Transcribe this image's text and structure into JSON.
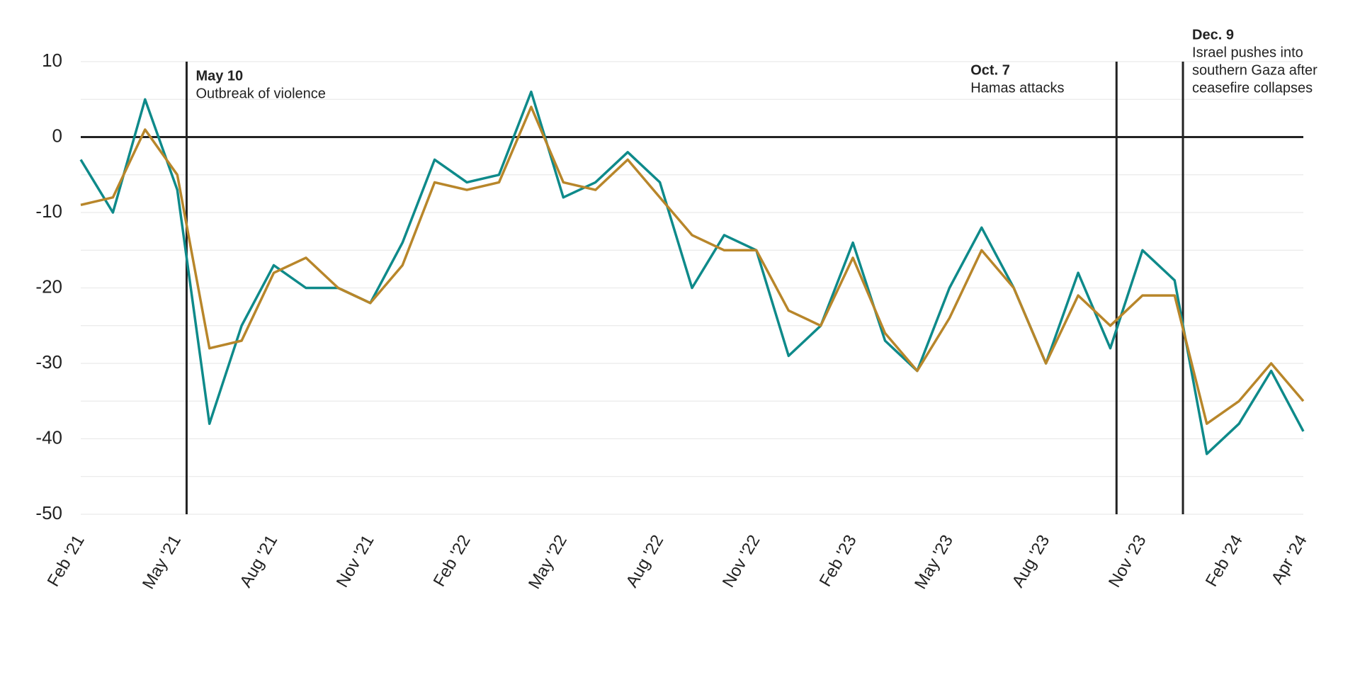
{
  "chart_data": {
    "type": "line",
    "x": [
      "2021-02",
      "2021-03",
      "2021-04",
      "2021-05",
      "2021-06",
      "2021-07",
      "2021-08",
      "2021-09",
      "2021-10",
      "2021-11",
      "2021-12",
      "2022-01",
      "2022-02",
      "2022-03",
      "2022-04",
      "2022-05",
      "2022-06",
      "2022-07",
      "2022-08",
      "2022-09",
      "2022-10",
      "2022-11",
      "2022-12",
      "2023-01",
      "2023-02",
      "2023-03",
      "2023-04",
      "2023-05",
      "2023-06",
      "2023-07",
      "2023-08",
      "2023-09",
      "2023-10",
      "2023-11",
      "2023-12",
      "2024-01",
      "2024-02",
      "2024-03",
      "2024-04"
    ],
    "series": [
      {
        "color": "#0e8a8a",
        "values": [
          -3,
          -10,
          5,
          -7,
          -38,
          -25,
          -17,
          -20,
          -20,
          -22,
          -14,
          -3,
          -6,
          -5,
          6,
          -8,
          -6,
          -2,
          -6,
          -20,
          -13,
          -15,
          -29,
          -25,
          -14,
          -27,
          -31,
          -20,
          -12,
          -20,
          -30,
          -18,
          -28,
          -15,
          -19,
          -42,
          -38,
          -31,
          -39
        ]
      },
      {
        "color": "#b8862a",
        "values": [
          -9,
          -8,
          1,
          -5,
          -28,
          -27,
          -18,
          -16,
          -20,
          -22,
          -17,
          -6,
          -7,
          -6,
          4,
          -6,
          -7,
          -3,
          -8,
          -13,
          -15,
          -15,
          -23,
          -25,
          -16,
          -26,
          -31,
          -24,
          -15,
          -20,
          -30,
          -21,
          -25,
          -21,
          -21,
          -38,
          -35,
          -30,
          -35
        ]
      }
    ],
    "xlim": [
      "2021-02",
      "2024-04"
    ],
    "xticks": [
      {
        "value": "2021-02",
        "label": "Feb '21"
      },
      {
        "value": "2021-05",
        "label": "May '21"
      },
      {
        "value": "2021-08",
        "label": "Aug '21"
      },
      {
        "value": "2021-11",
        "label": "Nov '21"
      },
      {
        "value": "2022-02",
        "label": "Feb '22"
      },
      {
        "value": "2022-05",
        "label": "May '22"
      },
      {
        "value": "2022-08",
        "label": "Aug '22"
      },
      {
        "value": "2022-11",
        "label": "Nov '22"
      },
      {
        "value": "2023-02",
        "label": "Feb '23"
      },
      {
        "value": "2023-05",
        "label": "May '23"
      },
      {
        "value": "2023-08",
        "label": "Aug '23"
      },
      {
        "value": "2023-11",
        "label": "Nov '23"
      },
      {
        "value": "2024-02",
        "label": "Feb '24"
      },
      {
        "value": "2024-04",
        "label": "Apr '24"
      }
    ],
    "ylim": [
      -50,
      10
    ],
    "yticks": [
      10,
      0,
      -10,
      -20,
      -30,
      -40,
      -50
    ],
    "ygrid_minor": [
      5,
      -5,
      -15,
      -25,
      -35,
      -45
    ],
    "grid": true,
    "annotations": [
      {
        "x": "2021-05-10",
        "date": "May 10",
        "text": [
          "Outbreak of violence"
        ]
      },
      {
        "x": "2023-10-07",
        "date": "Oct. 7",
        "text": [
          "Hamas attacks"
        ]
      },
      {
        "x": "2023-12-09",
        "date": "Dec. 9",
        "text": [
          "Israel pushes into",
          "southern Gaza after",
          "ceasefire collapses"
        ]
      }
    ]
  }
}
